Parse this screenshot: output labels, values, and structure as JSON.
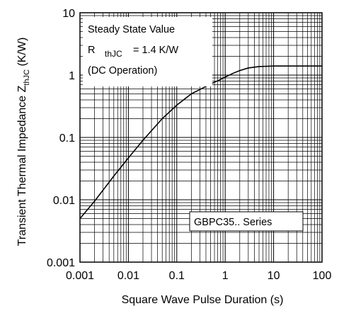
{
  "chart_data": {
    "type": "line",
    "xscale": "log",
    "yscale": "log",
    "xlim": [
      0.001,
      100
    ],
    "ylim": [
      0.001,
      10
    ],
    "grid": true,
    "xlabel": "Square Wave Pulse Duration (s)",
    "ylabel": {
      "main": "Transient Thermal Impedance Z",
      "sub": "thJC",
      "unit": " (K/W)"
    },
    "x_ticks": [
      "0.001",
      "0.01",
      "0.1",
      "1",
      "10",
      "100"
    ],
    "y_ticks": [
      "0.001",
      "0.01",
      "0.1",
      "1",
      "10"
    ],
    "series": [
      {
        "x": [
          0.001,
          0.002,
          0.005,
          0.01,
          0.02,
          0.05,
          0.1,
          0.2,
          0.5,
          0.8,
          1,
          1.5,
          2,
          3,
          5,
          8,
          10,
          20,
          50,
          100
        ],
        "y": [
          0.005,
          0.0095,
          0.024,
          0.047,
          0.09,
          0.2,
          0.33,
          0.5,
          0.72,
          0.85,
          0.93,
          1.08,
          1.18,
          1.3,
          1.37,
          1.39,
          1.4,
          1.4,
          1.4,
          1.4
        ]
      }
    ],
    "annotations": {
      "steady_state_title": "Steady State Value",
      "rth_symbol": "R",
      "rth_sub": "thJC",
      "rth_value": "= 1.4 K/W",
      "operation": "(DC Operation)",
      "series_label": "GBPC35.. Series"
    }
  }
}
